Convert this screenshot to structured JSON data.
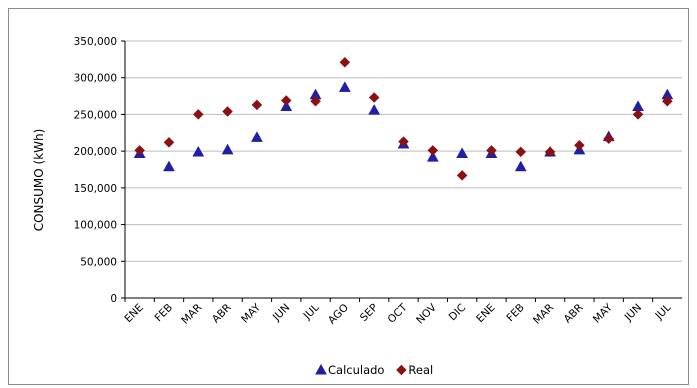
{
  "chart_data": {
    "type": "scatter",
    "categories": [
      "ENE",
      "FEB",
      "MAR",
      "ABR",
      "MAY",
      "JUN",
      "JUL",
      "AGO",
      "SEP",
      "OCT",
      "NOV",
      "DIC",
      "ENE",
      "FEB",
      "MAR",
      "ABR",
      "MAY",
      "JUN",
      "JUL"
    ],
    "series": [
      {
        "name": "Calculado",
        "marker": "triangle",
        "color": "#1f1fa8",
        "values": [
          197000,
          179000,
          199000,
          202000,
          219000,
          261000,
          277000,
          287000,
          256000,
          210000,
          192000,
          197000,
          197000,
          179000,
          199000,
          202000,
          220000,
          261000,
          277000
        ]
      },
      {
        "name": "Real",
        "marker": "diamond",
        "color": "#8b1010",
        "values": [
          201000,
          212000,
          250000,
          254000,
          263000,
          269000,
          268000,
          321000,
          273000,
          213000,
          201000,
          167000,
          201000,
          199000,
          199000,
          208000,
          217000,
          250000,
          268000
        ]
      }
    ],
    "ylabel": "CONSUMO (kWh)",
    "yticks": [
      "0",
      "50,000",
      "100,000",
      "150,000",
      "200,000",
      "250,000",
      "300,000",
      "350,000"
    ],
    "ylim": [
      0,
      350000
    ],
    "grid": true,
    "legend": "bottom-center"
  }
}
